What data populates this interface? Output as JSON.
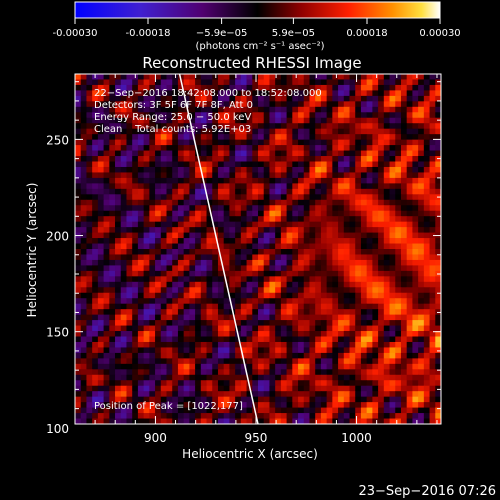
{
  "colorbar": {
    "ticks": [
      "-0.00030",
      "-0.00018",
      "−5.9e−05",
      "5.9e−05",
      "0.00018",
      "0.00030"
    ],
    "tick_values": [
      -0.0003,
      -0.00018,
      -5.9e-05,
      5.9e-05,
      0.00018,
      0.0003
    ],
    "range": [
      -0.0003,
      0.0003
    ],
    "units": "(photons cm⁻² s⁻¹ asec⁻²)"
  },
  "chart_data": {
    "type": "heatmap",
    "title": "Reconstructed RHESSI Image",
    "xlabel": "Heliocentric X (arcsec)",
    "ylabel": "Heliocentric Y (arcsec)",
    "xlim": [
      860,
      1042
    ],
    "ylim": [
      102,
      284
    ],
    "xticks": [
      900,
      950,
      1000
    ],
    "yticks": [
      100,
      150,
      200,
      250
    ],
    "xtick_labels": [
      "900",
      "950",
      "1000"
    ],
    "ytick_labels": [
      "100",
      "150",
      "200",
      "250"
    ],
    "annotations": [
      "22−Sep−2016 18:42:08.000 to 18:52:08.000",
      "Detectors: 3F 5F 6F 7F 8F, Att 0",
      "Energy Range: 25.0 − 50.0 keV",
      "Clean    Total counts: 5.92E+03"
    ],
    "peak_label": "Position of Peak = [1022,177]",
    "peak_position": [
      1022,
      177
    ],
    "limb_line": [
      [
        912,
        284
      ],
      [
        951,
        102
      ]
    ],
    "timestamp": "23−Sep−2016 07:26"
  },
  "colors": {
    "background": "#000000",
    "text": "#ffffff",
    "colormap": [
      "#0000ff",
      "#4020c0",
      "#400060",
      "#000000",
      "#700000",
      "#e00000",
      "#ff8000",
      "#ffe060",
      "#ffffff"
    ]
  }
}
